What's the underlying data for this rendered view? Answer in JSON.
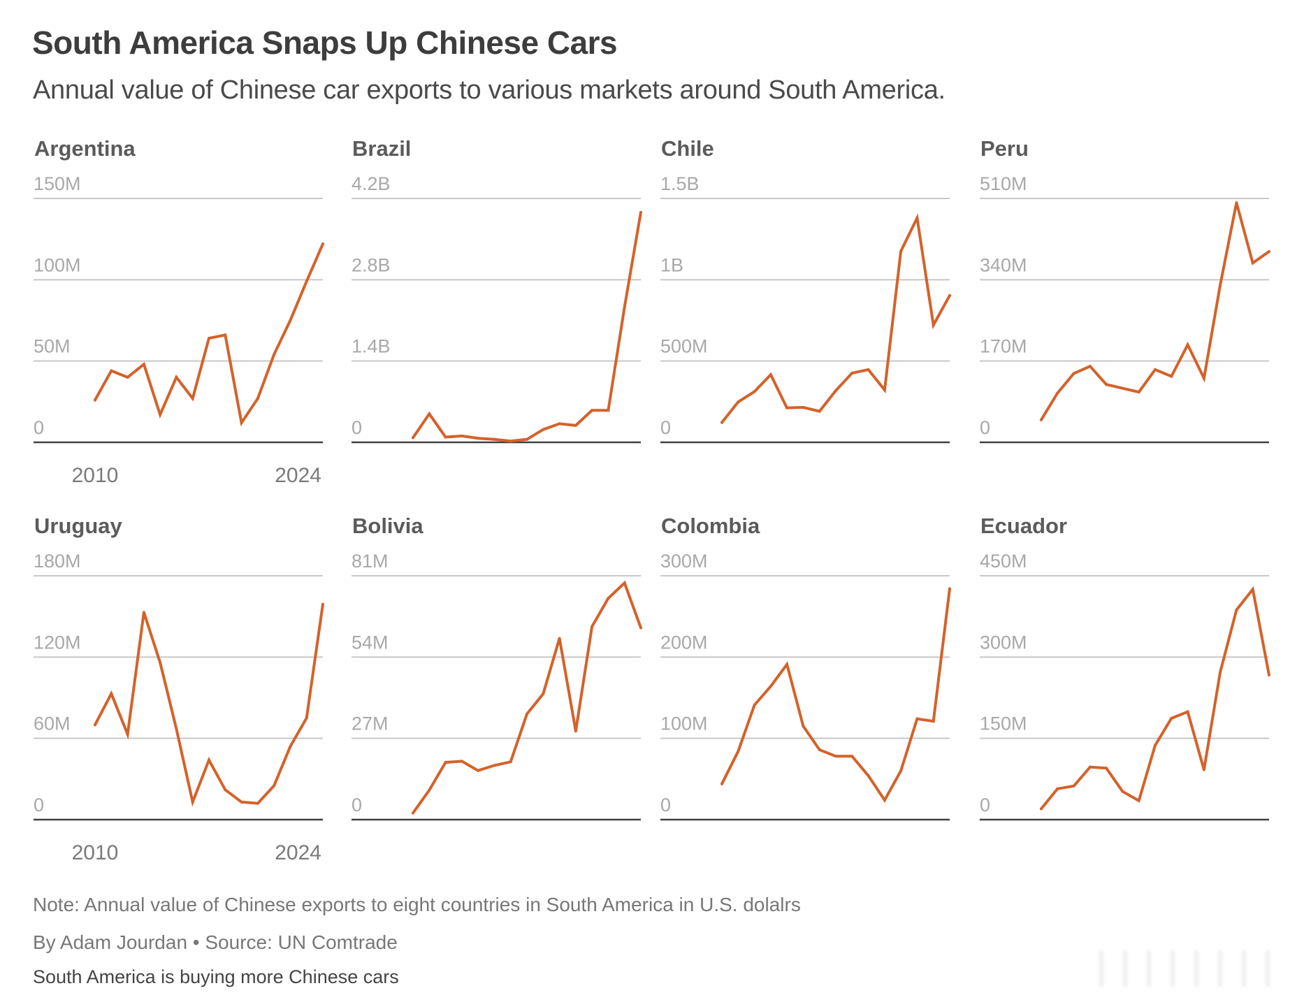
{
  "header": {
    "title": "South America Snaps Up Chinese Cars",
    "subtitle": "Annual value of Chinese car exports to various markets around South America."
  },
  "footer": {
    "note": "Note: Annual value of Chinese exports to eight countries in South America in U.S. dolalrs",
    "byline": "By Adam Jourdan • Source: UN Comtrade",
    "caption": "South America is buying more Chinese cars"
  },
  "colors": {
    "line": "#d4622a",
    "gridline": "#c8c8c8",
    "baseline": "#404040",
    "tick_label": "#a8a8a8",
    "year_label": "#7a7a7a"
  },
  "chart_data": [
    {
      "type": "line",
      "title": "Argentina",
      "x": [
        2010,
        2011,
        2012,
        2013,
        2014,
        2015,
        2016,
        2017,
        2018,
        2019,
        2020,
        2021,
        2022,
        2023,
        2024
      ],
      "values_millions_usd": [
        26,
        44,
        40,
        48,
        17,
        40,
        27,
        64,
        66,
        12,
        27,
        54,
        75,
        99,
        122
      ],
      "ylim": [
        0,
        150
      ],
      "yticks": [
        0,
        50,
        100,
        150
      ],
      "ytick_labels": [
        "0",
        "50M",
        "100M",
        "150M"
      ],
      "xtick_labels": [
        "2010",
        "2024"
      ],
      "grid": true
    },
    {
      "type": "line",
      "title": "Brazil",
      "x": [
        2010,
        2011,
        2012,
        2013,
        2014,
        2015,
        2016,
        2017,
        2018,
        2019,
        2020,
        2021,
        2022,
        2023,
        2024
      ],
      "values_millions_usd": [
        80,
        490,
        90,
        110,
        70,
        50,
        20,
        50,
        220,
        320,
        290,
        550,
        550,
        2330,
        3960
      ],
      "ylim": [
        0,
        4200
      ],
      "yticks": [
        0,
        1400,
        2800,
        4200
      ],
      "ytick_labels": [
        "0",
        "1.4B",
        "2.8B",
        "4.2B"
      ],
      "xtick_labels": [],
      "grid": true
    },
    {
      "type": "line",
      "title": "Chile",
      "x": [
        2010,
        2011,
        2012,
        2013,
        2014,
        2015,
        2016,
        2017,
        2018,
        2019,
        2020,
        2021,
        2022,
        2023,
        2024
      ],
      "values_millions_usd": [
        122,
        248,
        312,
        416,
        212,
        215,
        191,
        318,
        426,
        447,
        322,
        1175,
        1380,
        721,
        903
      ],
      "ylim": [
        0,
        1500
      ],
      "yticks": [
        0,
        500,
        1000,
        1500
      ],
      "ytick_labels": [
        "0",
        "500M",
        "1B",
        "1.5B"
      ],
      "xtick_labels": [],
      "grid": true
    },
    {
      "type": "line",
      "title": "Peru",
      "x": [
        2010,
        2011,
        2012,
        2013,
        2014,
        2015,
        2016,
        2017,
        2018,
        2019,
        2020,
        2021,
        2022,
        2023,
        2024
      ],
      "values_millions_usd": [
        47,
        103,
        144,
        159,
        121,
        113,
        105,
        152,
        138,
        204,
        134,
        329,
        501,
        375,
        399
      ],
      "ylim": [
        0,
        510
      ],
      "yticks": [
        0,
        170,
        340,
        510
      ],
      "ytick_labels": [
        "0",
        "170M",
        "340M",
        "510M"
      ],
      "xtick_labels": [],
      "grid": true
    },
    {
      "type": "line",
      "title": "Uruguay",
      "x": [
        2010,
        2011,
        2012,
        2013,
        2014,
        2015,
        2016,
        2017,
        2018,
        2019,
        2020,
        2021,
        2022,
        2023,
        2024
      ],
      "values_millions_usd": [
        70,
        93,
        63,
        153,
        116,
        67,
        13,
        44,
        22,
        13,
        12,
        25,
        54,
        75,
        159
      ],
      "ylim": [
        0,
        180
      ],
      "yticks": [
        0,
        60,
        120,
        180
      ],
      "ytick_labels": [
        "0",
        "60M",
        "120M",
        "180M"
      ],
      "xtick_labels": [
        "2010",
        "2024"
      ],
      "grid": true
    },
    {
      "type": "line",
      "title": "Bolivia",
      "x": [
        2010,
        2011,
        2012,
        2013,
        2014,
        2015,
        2016,
        2017,
        2018,
        2019,
        2020,
        2021,
        2022,
        2023,
        2024
      ],
      "values_millions_usd": [
        2.2,
        9.8,
        19.0,
        19.4,
        16.3,
        18.0,
        19.2,
        35.1,
        41.8,
        60.2,
        29.4,
        64.1,
        73.5,
        78.6,
        63.7
      ],
      "ylim": [
        0,
        81
      ],
      "yticks": [
        0,
        27,
        54,
        81
      ],
      "ytick_labels": [
        "0",
        "27M",
        "54M",
        "81M"
      ],
      "xtick_labels": [],
      "grid": true
    },
    {
      "type": "line",
      "title": "Colombia",
      "x": [
        2010,
        2011,
        2012,
        2013,
        2014,
        2015,
        2016,
        2017,
        2018,
        2019,
        2020,
        2021,
        2022,
        2023,
        2024
      ],
      "values_millions_usd": [
        44,
        84,
        141,
        164,
        191,
        115,
        86,
        78,
        78,
        54,
        24,
        60,
        124,
        121,
        284
      ],
      "ylim": [
        0,
        300
      ],
      "yticks": [
        0,
        100,
        200,
        300
      ],
      "ytick_labels": [
        "0",
        "100M",
        "200M",
        "300M"
      ],
      "xtick_labels": [],
      "grid": true
    },
    {
      "type": "line",
      "title": "Ecuador",
      "x": [
        2010,
        2011,
        2012,
        2013,
        2014,
        2015,
        2016,
        2017,
        2018,
        2019,
        2020,
        2021,
        2022,
        2023,
        2024
      ],
      "values_millions_usd": [
        20,
        57,
        62,
        97,
        95,
        52,
        35,
        137,
        187,
        199,
        92,
        272,
        387,
        425,
        267
      ],
      "ylim": [
        0,
        450
      ],
      "yticks": [
        0,
        150,
        300,
        450
      ],
      "ytick_labels": [
        "0",
        "150M",
        "300M",
        "450M"
      ],
      "xtick_labels": [],
      "grid": true
    }
  ]
}
